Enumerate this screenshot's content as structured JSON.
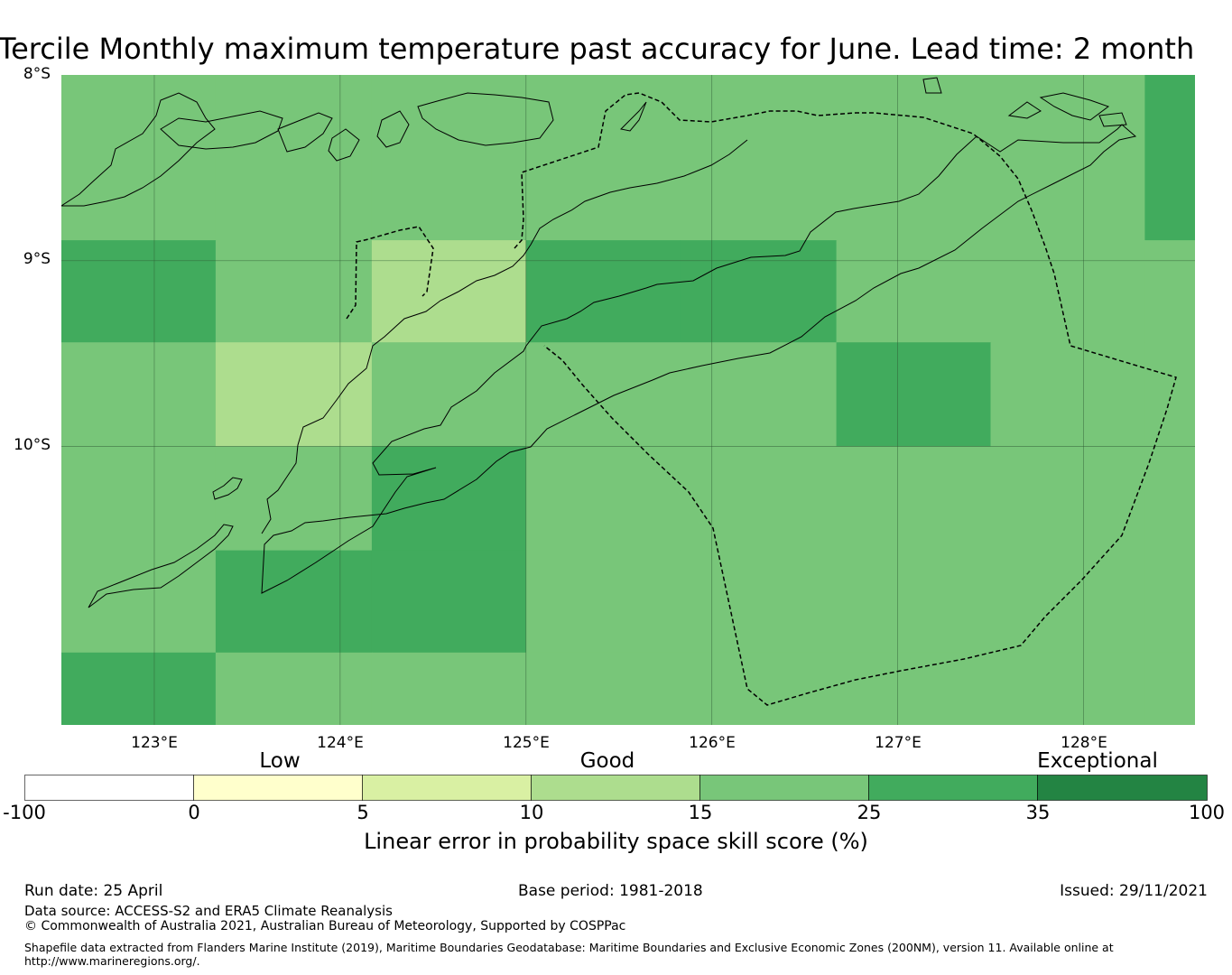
{
  "title": "Tercile Monthly maximum temperature past accuracy for June. Lead time: 2 month",
  "colors": {
    "lvl_neg": "#ffffff",
    "lvl0": "#ffffcc",
    "lvl1": "#d9f0a3",
    "lvl2": "#addd8e",
    "lvl3": "#78c679",
    "lvl4": "#41ab5d",
    "lvl5": "#238443",
    "grid": "#2d5a33",
    "coast": "#000000"
  },
  "map": {
    "lat_labels": [
      "8°S",
      "9°S",
      "10°S"
    ],
    "lon_labels": [
      "123°E",
      "124°E",
      "125°E",
      "126°E",
      "127°E",
      "128°E"
    ],
    "lon_range": [
      122.5,
      128.6
    ],
    "lat_range": [
      -8.0,
      -11.5
    ],
    "grid_lons": [
      123,
      124,
      125,
      126,
      127,
      128
    ],
    "grid_lats": [
      -9,
      -10
    ],
    "cell_cols": [
      122.5,
      123.33,
      124.17,
      125.0,
      125.83,
      126.67,
      127.5,
      128.33,
      128.6
    ],
    "cell_rows": [
      -8.0,
      -8.89,
      -9.44,
      -10.0,
      -10.56,
      -11.11,
      -11.5
    ],
    "cell_levels": [
      [
        3,
        3,
        3,
        3,
        3,
        3,
        3,
        4
      ],
      [
        4,
        3,
        2,
        4,
        4,
        3,
        3,
        3
      ],
      [
        3,
        2,
        3,
        3,
        3,
        4,
        3,
        3
      ],
      [
        3,
        3,
        4,
        3,
        3,
        3,
        3,
        3
      ],
      [
        3,
        4,
        4,
        3,
        3,
        3,
        3,
        3
      ],
      [
        4,
        3,
        3,
        3,
        3,
        3,
        3,
        3
      ]
    ]
  },
  "colorbar": {
    "category_labels": [
      "Low",
      "Good",
      "Exceptional"
    ],
    "ticks": [
      "-100",
      "0",
      "5",
      "10",
      "15",
      "25",
      "35",
      "100"
    ],
    "label": "Linear error in probability space skill score (%)"
  },
  "footer": {
    "run_date": "Run date: 25 April",
    "base_period": "Base period: 1981-2018",
    "issued": "Issued: 29/11/2021",
    "data_source": "Data source: ACCESS-S2 and ERA5 Climate Reanalysis",
    "copyright": "© Commonwealth of Australia 2021, Australian Bureau of Meteorology, Supported by COSPPac",
    "shapefile_line1": "Shapefile data extracted from Flanders Marine Institute (2019), Maritime Boundaries Geodatabase: Maritime Boundaries and Exclusive Economic Zones (200NM), version 11. Available online at",
    "shapefile_line2": "http://www.marineregions.org/."
  }
}
